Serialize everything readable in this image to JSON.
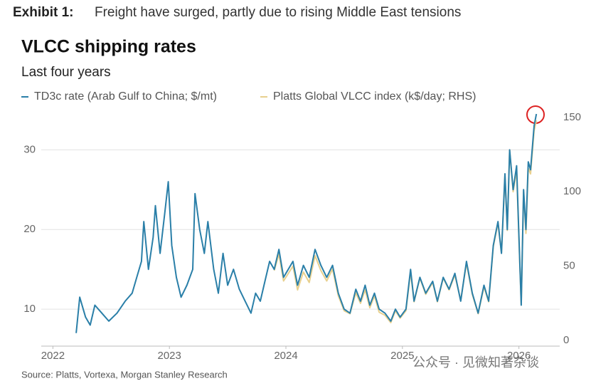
{
  "header": {
    "label": "Exhibit 1:",
    "text": "Freight have surged, partly due to rising Middle East tensions"
  },
  "chart_data": {
    "type": "line",
    "title": "VLCC shipping rates",
    "subtitle": "Last four years",
    "source": "Source: Platts, Vortexa, Morgan Stanley Research",
    "watermark": "公众号 · 见微知著杂谈",
    "x": [
      2022.2,
      2022.23,
      2022.28,
      2022.32,
      2022.36,
      2022.42,
      2022.48,
      2022.55,
      2022.62,
      2022.68,
      2022.72,
      2022.76,
      2022.78,
      2022.82,
      2022.86,
      2022.88,
      2022.92,
      2022.96,
      2022.99,
      2023.02,
      2023.06,
      2023.1,
      2023.15,
      2023.2,
      2023.22,
      2023.26,
      2023.3,
      2023.33,
      2023.38,
      2023.42,
      2023.46,
      2023.5,
      2023.55,
      2023.6,
      2023.65,
      2023.7,
      2023.74,
      2023.78,
      2023.82,
      2023.86,
      2023.9,
      2023.94,
      2023.98,
      2024.02,
      2024.06,
      2024.1,
      2024.15,
      2024.2,
      2024.25,
      2024.3,
      2024.35,
      2024.4,
      2024.45,
      2024.5,
      2024.55,
      2024.6,
      2024.64,
      2024.68,
      2024.72,
      2024.76,
      2024.8,
      2024.85,
      2024.9,
      2024.94,
      2024.98,
      2025.03,
      2025.07,
      2025.1,
      2025.15,
      2025.2,
      2025.26,
      2025.3,
      2025.35,
      2025.4,
      2025.45,
      2025.5,
      2025.55,
      2025.6,
      2025.65,
      2025.7,
      2025.74,
      2025.78,
      2025.82,
      2025.85,
      2025.88,
      2025.9,
      2025.92,
      2025.95,
      2025.98,
      2026.0,
      2026.02,
      2026.04,
      2026.06,
      2026.08,
      2026.1,
      2026.13,
      2026.15
    ],
    "series": [
      {
        "name": "TD3c rate (Arab Gulf to China; $/mt)",
        "color": "#2a7fa8",
        "values": [
          7,
          11.5,
          9,
          8,
          10.5,
          9.5,
          8.5,
          9.5,
          11,
          12,
          14,
          16,
          21,
          15,
          19,
          23,
          17,
          22,
          26,
          18,
          14,
          11.5,
          13,
          15,
          24.5,
          20,
          17,
          21,
          15,
          12,
          17,
          13,
          15,
          12.5,
          11,
          9.5,
          12,
          11,
          13.5,
          16,
          15,
          17.5,
          14,
          15,
          16,
          13,
          15.5,
          14,
          17.5,
          15.5,
          14,
          15.5,
          12,
          10,
          9.5,
          12.5,
          11,
          13,
          10.5,
          12,
          10,
          9.5,
          8.5,
          10,
          9,
          10,
          15,
          11,
          14,
          12,
          13.5,
          11,
          14,
          12.5,
          14.5,
          11,
          16,
          12,
          9.5,
          13,
          11,
          18,
          21,
          17,
          27,
          20,
          30,
          25,
          28,
          19,
          10.5,
          25,
          20,
          28.5,
          27.5,
          33,
          34.5
        ]
      },
      {
        "name": "Platts Global VLCC index (k$/day; RHS)",
        "color": "#e8d08e",
        "axis": "y2",
        "values": [
          null,
          null,
          null,
          null,
          null,
          null,
          null,
          null,
          null,
          null,
          null,
          null,
          null,
          null,
          null,
          null,
          null,
          null,
          null,
          null,
          null,
          null,
          null,
          null,
          null,
          null,
          null,
          null,
          null,
          null,
          null,
          null,
          null,
          null,
          null,
          null,
          null,
          null,
          null,
          null,
          47,
          58,
          40,
          45,
          50,
          34,
          46,
          39,
          57,
          47,
          40,
          48,
          30,
          20,
          18,
          32,
          25,
          34,
          22,
          30,
          19,
          17,
          12,
          20,
          15,
          20,
          46,
          26,
          42,
          31,
          39,
          26,
          42,
          34,
          44,
          27,
          52,
          31,
          18,
          36,
          26,
          63,
          79,
          59,
          111,
          74,
          128,
          100,
          114,
          68,
          24,
          100,
          72,
          116,
          112,
          141,
          148
        ]
      }
    ],
    "xlim": [
      2021.9,
      2026.35
    ],
    "xticks": [
      2022,
      2023,
      2024,
      2025,
      2026
    ],
    "ylim": [
      5.36,
      35.4
    ],
    "yticks": [
      10,
      20,
      30
    ],
    "y2lim": [
      -3.8,
      157.1
    ],
    "y2ticks": [
      0,
      50,
      100,
      150
    ],
    "grid": true
  }
}
